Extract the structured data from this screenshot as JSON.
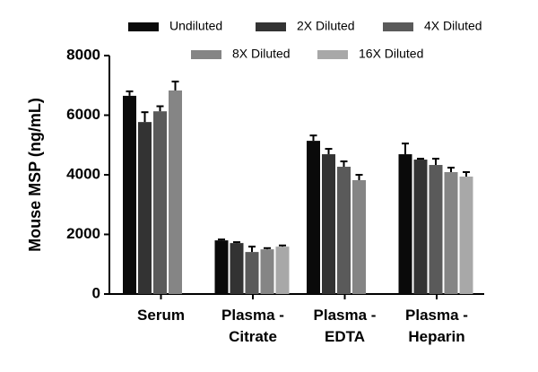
{
  "chart_data": {
    "type": "bar",
    "ylabel": "Mouse MSP (ng/mL)",
    "categories": [
      "Serum",
      "Plasma - Citrate",
      "Plasma - EDTA",
      "Plasma - Heparin"
    ],
    "series": [
      {
        "name": "Undiluted",
        "color": "#0a0a0a",
        "values": [
          6650,
          1800,
          5140,
          4690
        ],
        "errors": [
          150,
          30,
          180,
          360
        ]
      },
      {
        "name": "2X Diluted",
        "color": "#333333",
        "values": [
          5770,
          1710,
          4690,
          4510
        ],
        "errors": [
          330,
          30,
          180,
          30
        ]
      },
      {
        "name": "4X Diluted",
        "color": "#5a5a5a",
        "values": [
          6130,
          1410,
          4270,
          4330
        ],
        "errors": [
          170,
          180,
          180,
          210
        ]
      },
      {
        "name": "8X Diluted",
        "color": "#858585",
        "values": [
          6830,
          1500,
          3820,
          4090
        ],
        "errors": [
          300,
          40,
          180,
          150
        ]
      },
      {
        "name": "16X Diluted",
        "color": "#a8a8a8",
        "values": [
          null,
          1590,
          null,
          3940
        ],
        "errors": [
          null,
          40,
          null,
          150
        ]
      }
    ],
    "ylim": [
      0,
      8000
    ],
    "yticks": [
      0,
      2000,
      4000,
      6000,
      8000
    ],
    "grid": false
  }
}
